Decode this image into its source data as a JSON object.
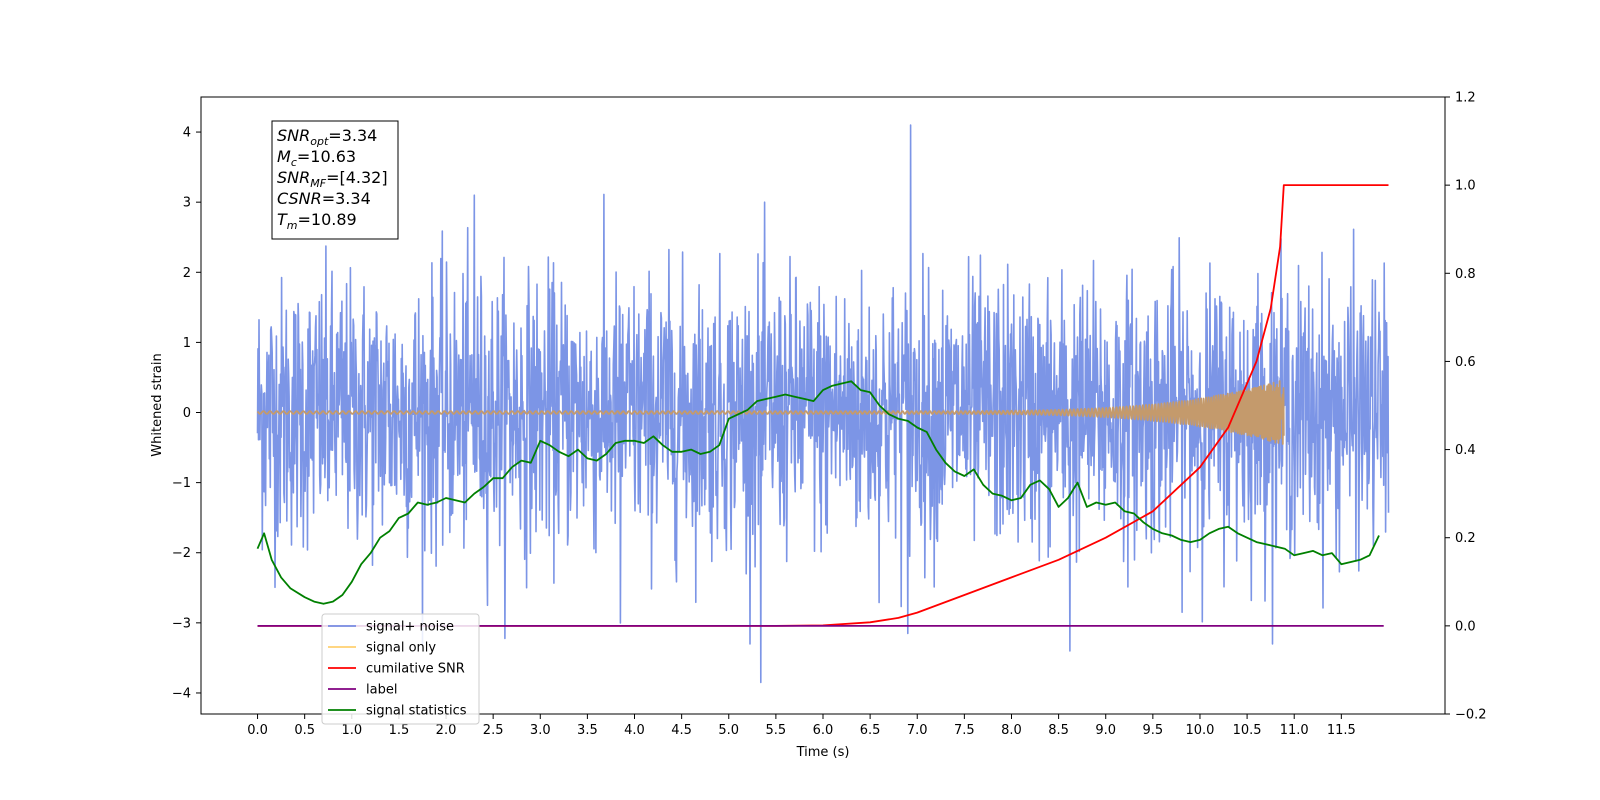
{
  "chart_data": {
    "type": "line",
    "xlabel": "Time (s)",
    "ylabel": "Whitened strain",
    "xlim": [
      -0.6,
      12.6
    ],
    "ylim": [
      -4.3,
      4.5
    ],
    "y2lim": [
      -0.2,
      1.2
    ],
    "x_ticks": [
      "0.0",
      "0.5",
      "1.0",
      "1.5",
      "2.0",
      "2.5",
      "3.0",
      "3.5",
      "4.0",
      "4.5",
      "5.0",
      "5.5",
      "6.0",
      "6.5",
      "7.0",
      "7.5",
      "8.0",
      "8.5",
      "9.0",
      "9.5",
      "10.0",
      "10.5",
      "11.0",
      "11.5"
    ],
    "y_ticks": [
      "4",
      "3",
      "2",
      "1",
      "0",
      "−1",
      "−2",
      "−3",
      "−4"
    ],
    "y2_ticks": [
      "1.2",
      "1.0",
      "0.8",
      "0.6",
      "0.4",
      "0.2",
      "0.0",
      "−0.2"
    ],
    "annotation": [
      {
        "var": "SNR",
        "sub": "opt",
        "value": "=3.34"
      },
      {
        "var": "M",
        "sub": "c",
        "value": "=10.63"
      },
      {
        "var": "SNR",
        "sub": "MF",
        "value": "=[4.32]"
      },
      {
        "var": "CSNR",
        "sub": "",
        "value": "=3.34"
      },
      {
        "var": "T",
        "sub": "m",
        "value": "=10.89"
      }
    ],
    "legend_position": "lower-left",
    "series": [
      {
        "name": "signal+ noise",
        "color": "#5b7be0",
        "axis": "left",
        "kind": "noise",
        "x_range": [
          0.0,
          12.0
        ],
        "std": 0.95,
        "max": 4.1,
        "min": -3.85
      },
      {
        "name": "signal only",
        "color": "#c49a6c",
        "axis": "left",
        "kind": "chirp",
        "x_range": [
          0.0,
          10.89
        ],
        "peak_amplitude": 0.45
      },
      {
        "name": "cumilative SNR",
        "color": "#ff0000",
        "axis": "right",
        "x": [
          0.0,
          5.5,
          6.0,
          6.5,
          6.8,
          7.0,
          7.5,
          8.0,
          8.5,
          9.0,
          9.5,
          10.0,
          10.3,
          10.6,
          10.75,
          10.85,
          10.89,
          11.0,
          11.5,
          12.0
        ],
        "y": [
          0.0,
          0.0,
          0.001,
          0.008,
          0.018,
          0.03,
          0.07,
          0.11,
          0.15,
          0.2,
          0.26,
          0.36,
          0.45,
          0.6,
          0.72,
          0.86,
          1.0,
          1.0,
          1.0,
          1.0
        ]
      },
      {
        "name": "label",
        "color": "#800080",
        "axis": "right",
        "x": [
          0.0,
          11.95
        ],
        "y": [
          0.0,
          0.0
        ]
      },
      {
        "name": "signal statistics",
        "color": "#008000",
        "axis": "right",
        "x": [
          0.0,
          0.07,
          0.15,
          0.25,
          0.35,
          0.5,
          0.6,
          0.7,
          0.8,
          0.9,
          1.0,
          1.1,
          1.2,
          1.3,
          1.4,
          1.5,
          1.6,
          1.7,
          1.8,
          1.9,
          2.0,
          2.1,
          2.2,
          2.3,
          2.4,
          2.5,
          2.6,
          2.7,
          2.8,
          2.9,
          3.0,
          3.1,
          3.2,
          3.3,
          3.4,
          3.5,
          3.6,
          3.7,
          3.8,
          3.9,
          4.0,
          4.1,
          4.2,
          4.3,
          4.4,
          4.5,
          4.6,
          4.7,
          4.8,
          4.9,
          5.0,
          5.1,
          5.2,
          5.3,
          5.4,
          5.5,
          5.6,
          5.7,
          5.8,
          5.9,
          6.0,
          6.1,
          6.2,
          6.3,
          6.4,
          6.5,
          6.6,
          6.7,
          6.8,
          6.9,
          7.0,
          7.1,
          7.2,
          7.3,
          7.4,
          7.5,
          7.6,
          7.7,
          7.8,
          7.9,
          8.0,
          8.1,
          8.2,
          8.3,
          8.4,
          8.5,
          8.6,
          8.7,
          8.8,
          8.9,
          9.0,
          9.1,
          9.2,
          9.3,
          9.4,
          9.5,
          9.6,
          9.7,
          9.8,
          9.9,
          10.0,
          10.1,
          10.2,
          10.3,
          10.4,
          10.5,
          10.6,
          10.7,
          10.8,
          10.9,
          11.0,
          11.1,
          11.2,
          11.3,
          11.4,
          11.5,
          11.6,
          11.7,
          11.8,
          11.9
        ],
        "y": [
          0.175,
          0.21,
          0.15,
          0.11,
          0.085,
          0.065,
          0.055,
          0.05,
          0.055,
          0.07,
          0.1,
          0.14,
          0.165,
          0.2,
          0.215,
          0.245,
          0.255,
          0.28,
          0.275,
          0.28,
          0.29,
          0.285,
          0.28,
          0.3,
          0.315,
          0.335,
          0.335,
          0.36,
          0.375,
          0.37,
          0.42,
          0.41,
          0.395,
          0.385,
          0.4,
          0.38,
          0.375,
          0.39,
          0.415,
          0.42,
          0.42,
          0.415,
          0.43,
          0.41,
          0.395,
          0.395,
          0.4,
          0.39,
          0.395,
          0.41,
          0.47,
          0.48,
          0.49,
          0.51,
          0.515,
          0.52,
          0.525,
          0.52,
          0.515,
          0.51,
          0.535,
          0.545,
          0.55,
          0.555,
          0.535,
          0.53,
          0.5,
          0.48,
          0.47,
          0.465,
          0.45,
          0.44,
          0.4,
          0.37,
          0.35,
          0.34,
          0.355,
          0.32,
          0.3,
          0.295,
          0.285,
          0.29,
          0.32,
          0.33,
          0.31,
          0.27,
          0.29,
          0.325,
          0.27,
          0.28,
          0.275,
          0.28,
          0.26,
          0.255,
          0.235,
          0.22,
          0.21,
          0.205,
          0.195,
          0.19,
          0.195,
          0.21,
          0.22,
          0.225,
          0.21,
          0.2,
          0.19,
          0.185,
          0.18,
          0.175,
          0.16,
          0.165,
          0.17,
          0.16,
          0.165,
          0.14,
          0.145,
          0.15,
          0.16,
          0.205
        ]
      }
    ]
  }
}
